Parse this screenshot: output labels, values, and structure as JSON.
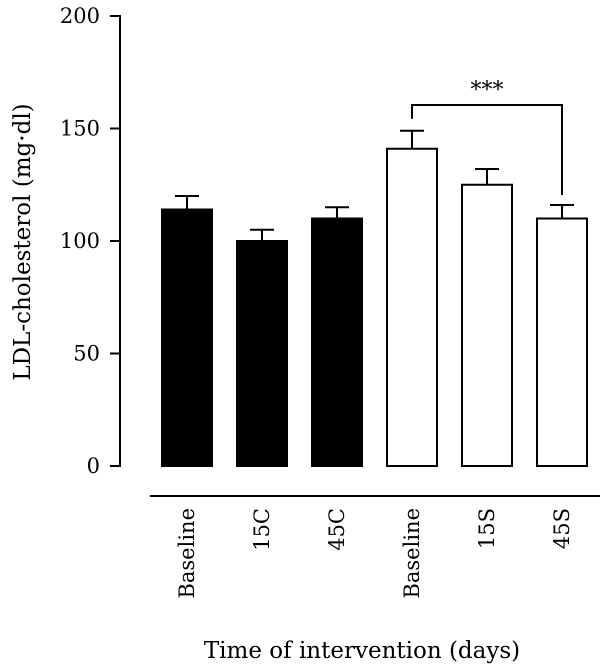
{
  "chart_data": {
    "type": "bar",
    "title": "",
    "xlabel": "Time of intervention (days)",
    "ylabel": "LDL-cholesterol (mg·dl)",
    "ylim": [
      0,
      200
    ],
    "yticks": [
      0,
      50,
      100,
      150,
      200
    ],
    "grid": false,
    "legend": "none",
    "categories": [
      "Baseline",
      "15C",
      "45C",
      "Baseline",
      "15S",
      "45S"
    ],
    "values": [
      114,
      100,
      110,
      141,
      125,
      110
    ],
    "error": [
      6,
      5,
      5,
      8,
      7,
      6
    ],
    "fills": [
      "#000000",
      "#000000",
      "#000000",
      "#ffffff",
      "#ffffff",
      "#ffffff"
    ],
    "significance": {
      "from_index": 3,
      "to_index": 5,
      "label": "***"
    }
  }
}
